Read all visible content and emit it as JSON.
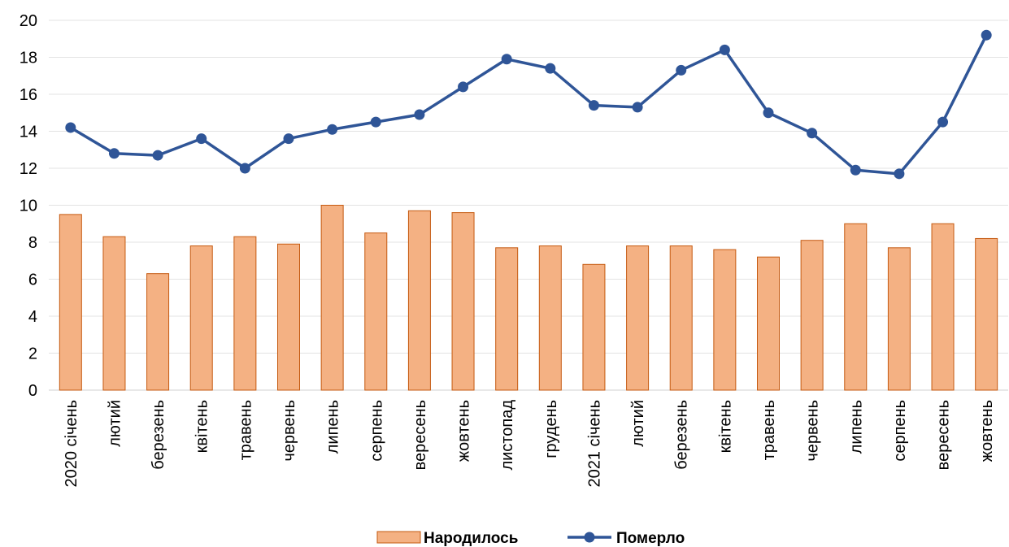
{
  "chart_data": {
    "type": "bar",
    "categories": [
      "2020 січень",
      "лютий",
      "березень",
      "квітень",
      "травень",
      "червень",
      "липень",
      "серпень",
      "вересень",
      "жовтень",
      "листопад",
      "грудень",
      "2021 січень",
      "лютий",
      "березень",
      "квітень",
      "травень",
      "червень",
      "липень",
      "серпень",
      "вересень",
      "жовтень"
    ],
    "series": [
      {
        "name": "Народилось",
        "type": "bar",
        "color": "#F4B183",
        "stroke": "#C55A11",
        "values": [
          9.5,
          8.3,
          6.3,
          7.8,
          8.3,
          7.9,
          10.0,
          8.5,
          9.7,
          9.6,
          7.7,
          7.8,
          6.8,
          7.8,
          7.8,
          7.6,
          7.2,
          8.1,
          9.0,
          7.7,
          9.0,
          8.2
        ]
      },
      {
        "name": "Померло",
        "type": "line",
        "color": "#2F5597",
        "values": [
          14.2,
          12.8,
          12.7,
          13.6,
          12.0,
          13.6,
          14.1,
          14.5,
          14.9,
          16.4,
          17.9,
          17.4,
          15.4,
          15.3,
          17.3,
          18.4,
          15.0,
          13.9,
          11.9,
          11.7,
          14.5,
          19.2
        ]
      }
    ],
    "title": "",
    "xlabel": "",
    "ylabel": "",
    "ylim": [
      0,
      20
    ],
    "yticks": [
      "0",
      "2",
      "4",
      "6",
      "8",
      "10",
      "12",
      "14",
      "16",
      "18",
      "20"
    ],
    "grid": true,
    "legend": "bottom"
  }
}
